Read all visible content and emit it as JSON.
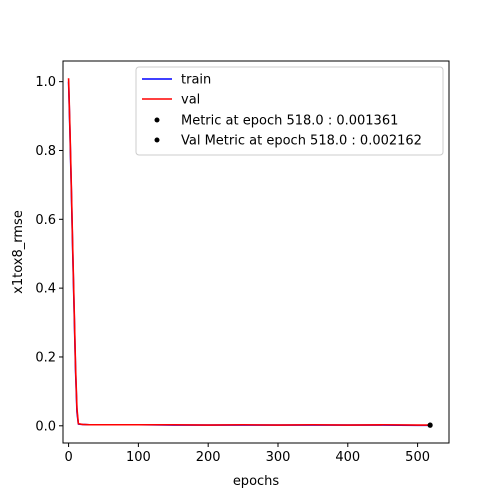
{
  "chart_data": {
    "type": "line",
    "title": "",
    "xlabel": "epochs",
    "ylabel": "x1tox8_rmse",
    "xlim": [
      -8,
      545
    ],
    "ylim": [
      -0.05,
      1.06
    ],
    "xticks": [
      0,
      100,
      200,
      300,
      400,
      500
    ],
    "yticks": [
      0.0,
      0.2,
      0.4,
      0.6,
      0.8,
      1.0
    ],
    "xtick_labels": [
      "0",
      "100",
      "200",
      "300",
      "400",
      "500"
    ],
    "ytick_labels": [
      "0.0",
      "0.2",
      "0.4",
      "0.6",
      "0.8",
      "1.0"
    ],
    "grid": false,
    "legend_position": "top-right",
    "series": [
      {
        "name": "train",
        "color": "#0000ff",
        "x": [
          0,
          2,
          4,
          6,
          8,
          10,
          12,
          14,
          20,
          30,
          50,
          100,
          150,
          200,
          250,
          300,
          350,
          400,
          450,
          500,
          518
        ],
        "y": [
          1.0,
          0.85,
          0.68,
          0.5,
          0.33,
          0.16,
          0.04,
          0.005,
          0.004,
          0.003,
          0.003,
          0.003,
          0.002,
          0.002,
          0.002,
          0.002,
          0.002,
          0.002,
          0.002,
          0.0015,
          0.001361
        ]
      },
      {
        "name": "val",
        "color": "#ff0000",
        "x": [
          0,
          2,
          4,
          6,
          8,
          10,
          12,
          14,
          20,
          30,
          50,
          100,
          150,
          200,
          250,
          300,
          350,
          400,
          450,
          500,
          518
        ],
        "y": [
          1.01,
          0.86,
          0.69,
          0.51,
          0.34,
          0.17,
          0.05,
          0.006,
          0.004,
          0.003,
          0.003,
          0.003,
          0.003,
          0.002,
          0.003,
          0.002,
          0.003,
          0.002,
          0.003,
          0.002,
          0.002162
        ]
      }
    ],
    "markers": [
      {
        "label": "Metric at epoch 518.0 : 0.001361",
        "x": 518,
        "y": 0.001361,
        "color": "#000000"
      },
      {
        "label": "Val Metric at epoch 518.0 : 0.002162",
        "x": 518,
        "y": 0.002162,
        "color": "#000000"
      }
    ]
  }
}
